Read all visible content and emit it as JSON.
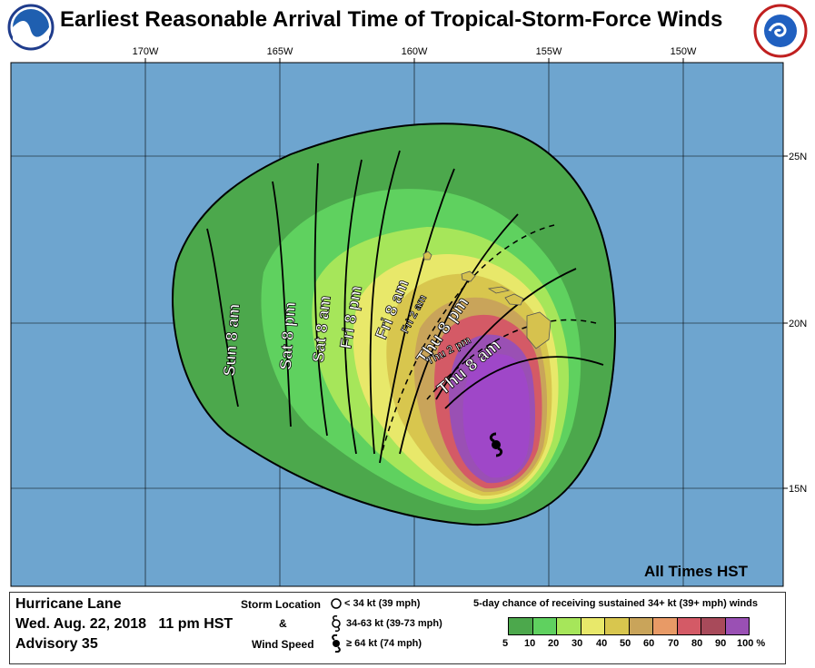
{
  "title": "Earliest Reasonable Arrival Time of Tropical-Storm-Force Winds",
  "logos": {
    "left": "noaa-logo-icon",
    "right": "nws-logo-icon"
  },
  "map": {
    "longitude_labels": [
      "170W",
      "165W",
      "160W",
      "155W",
      "150W"
    ],
    "latitude_labels": [
      "25N",
      "20N",
      "15N"
    ],
    "time_labels": [
      "Sun 8 am",
      "Sat 8 pm",
      "Sat 8 am",
      "Fri 8 pm",
      "Fri 8 am",
      "Fri 2 am",
      "Thu 8 pm",
      "Thu 2 pm",
      "Thu 8 am"
    ],
    "note": "All Times HST",
    "colors": {
      "ocean": "#6ea5cf",
      "water_border": "#000000"
    }
  },
  "legend": {
    "storm_name": "Hurricane Lane",
    "datetime": "Wed. Aug. 22, 2018   11 pm HST",
    "advisory": "Advisory 35",
    "storm_location_label": "Storm Location",
    "ampersand": "&",
    "wind_speed_label": "Wind Speed",
    "symbols": [
      {
        "icon": "open-circle-icon",
        "label": "< 34 kt (39 mph)"
      },
      {
        "icon": "tropical-storm-icon",
        "label": "34-63 kt (39-73 mph)"
      },
      {
        "icon": "hurricane-icon",
        "label": "≥ 64 kt (74 mph)"
      }
    ],
    "probability_title": "5-day chance of receiving sustained 34+ kt (39+ mph) winds",
    "probability_colors": [
      "#4ca84c",
      "#5fd15f",
      "#a6e65a",
      "#e8e86a",
      "#d8c64e",
      "#c9a45a",
      "#e89a66",
      "#d45a66",
      "#a84a5a",
      "#9a50b4"
    ],
    "probability_ticks": [
      "5",
      "10",
      "20",
      "30",
      "40",
      "50",
      "60",
      "70",
      "80",
      "90",
      "100 %"
    ]
  }
}
